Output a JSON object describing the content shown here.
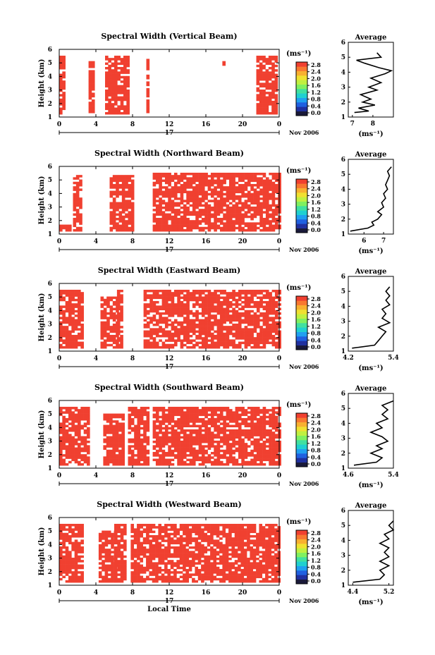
{
  "xaxis": {
    "ticks": [
      "0",
      "4",
      "8",
      "12",
      "16",
      "20",
      "0"
    ],
    "day": "17",
    "month": "Nov 2006",
    "label": "Local Time"
  },
  "height_axis": {
    "label": "Height (km)",
    "ticks": [
      "1",
      "2",
      "3",
      "4",
      "5",
      "6"
    ]
  },
  "colorbar": {
    "unit": "(ms⁻¹)",
    "ticks": [
      "0.0",
      "0.4",
      "0.8",
      "1.2",
      "1.6",
      "2.0",
      "2.4",
      "2.8"
    ],
    "colors": [
      "#1a1a3a",
      "#2030a0",
      "#2060e0",
      "#20a0f0",
      "#20d0d0",
      "#40e0a0",
      "#80f060",
      "#c0f040",
      "#f0e030",
      "#f8b030",
      "#f87830",
      "#f04030"
    ]
  },
  "average_panel": {
    "title": "Average",
    "xlabel": "(ms⁻¹)"
  },
  "chart_data": [
    {
      "type": "heatmap",
      "title": "Spectral Width (Vertical Beam)",
      "ylabel": "Height (km)",
      "xlabel": "",
      "xlim": [
        0,
        24
      ],
      "ylim": [
        1,
        6
      ],
      "avg_xticks": [
        "7",
        "8"
      ],
      "avg_xlim": [
        6.8,
        9.0
      ],
      "avg_profile": [
        [
          7.1,
          1.3
        ],
        [
          7.8,
          1.4
        ],
        [
          7.3,
          1.6
        ],
        [
          8.1,
          1.8
        ],
        [
          7.5,
          2.0
        ],
        [
          7.9,
          2.2
        ],
        [
          7.4,
          2.5
        ],
        [
          8.2,
          2.8
        ],
        [
          7.8,
          3.0
        ],
        [
          8.4,
          3.3
        ],
        [
          7.9,
          3.6
        ],
        [
          8.6,
          3.9
        ],
        [
          8.9,
          4.1
        ],
        [
          8.3,
          4.3
        ],
        [
          7.6,
          4.6
        ],
        [
          7.2,
          4.8
        ],
        [
          8.4,
          5.0
        ],
        [
          8.2,
          5.3
        ]
      ],
      "coverage": [
        [
          0,
          1.2,
          0.6,
          5.5
        ],
        [
          3.2,
          1.3,
          0.4,
          5.1
        ],
        [
          5.0,
          1.2,
          2.5,
          5.5
        ],
        [
          9.5,
          1.3,
          0.3,
          5.3
        ],
        [
          17.8,
          4.8,
          0.3,
          5.3
        ],
        [
          21.5,
          1.2,
          2.3,
          5.5
        ]
      ]
    },
    {
      "type": "heatmap",
      "title": "Spectral Width (Northward Beam)",
      "ylabel": "Height (km)",
      "xlabel": "",
      "xlim": [
        0,
        24
      ],
      "ylim": [
        1,
        6
      ],
      "avg_xticks": [
        "6",
        "7"
      ],
      "avg_xlim": [
        5.2,
        7.5
      ],
      "avg_profile": [
        [
          5.3,
          1.2
        ],
        [
          6.2,
          1.4
        ],
        [
          6.5,
          1.6
        ],
        [
          6.4,
          1.8
        ],
        [
          6.7,
          2.0
        ],
        [
          6.9,
          2.3
        ],
        [
          6.7,
          2.5
        ],
        [
          7.0,
          2.8
        ],
        [
          6.9,
          3.1
        ],
        [
          7.1,
          3.4
        ],
        [
          7.0,
          3.7
        ],
        [
          7.2,
          4.0
        ],
        [
          7.1,
          4.3
        ],
        [
          7.2,
          4.6
        ],
        [
          7.3,
          4.9
        ],
        [
          7.2,
          5.2
        ],
        [
          7.4,
          5.5
        ]
      ],
      "coverage": [
        [
          0,
          1.2,
          1.2,
          1.6
        ],
        [
          1.5,
          1.2,
          0.9,
          5.3
        ],
        [
          5.5,
          1.2,
          2.5,
          5.3
        ],
        [
          10.2,
          1.2,
          13.8,
          5.5
        ]
      ]
    },
    {
      "type": "heatmap",
      "title": "Spectral Width (Eastward Beam)",
      "ylabel": "Height (km)",
      "xlabel": "",
      "xlim": [
        0,
        24
      ],
      "ylim": [
        1,
        6
      ],
      "avg_xticks": [
        "4.2",
        "5.4"
      ],
      "avg_xlim": [
        4.2,
        5.4
      ],
      "avg_profile": [
        [
          4.3,
          1.2
        ],
        [
          4.9,
          1.4
        ],
        [
          5.0,
          1.7
        ],
        [
          5.1,
          2.0
        ],
        [
          5.2,
          2.3
        ],
        [
          5.0,
          2.6
        ],
        [
          5.3,
          2.9
        ],
        [
          5.1,
          3.2
        ],
        [
          5.2,
          3.5
        ],
        [
          5.1,
          3.8
        ],
        [
          5.3,
          4.1
        ],
        [
          5.2,
          4.4
        ],
        [
          5.3,
          4.7
        ],
        [
          5.2,
          5.0
        ],
        [
          5.3,
          5.3
        ]
      ],
      "coverage": [
        [
          0,
          1.2,
          2.5,
          5.5
        ],
        [
          4.5,
          1.2,
          1.8,
          5.0
        ],
        [
          6.3,
          1.2,
          0.5,
          5.5
        ],
        [
          9.2,
          1.2,
          14.8,
          5.5
        ]
      ]
    },
    {
      "type": "heatmap",
      "title": "Spectral Width (Southward Beam)",
      "ylabel": "Height (km)",
      "xlabel": "",
      "xlim": [
        0,
        24
      ],
      "ylim": [
        1,
        6
      ],
      "avg_xticks": [
        "4.6",
        "5.4"
      ],
      "avg_xlim": [
        4.6,
        5.4
      ],
      "avg_profile": [
        [
          4.7,
          1.2
        ],
        [
          5.1,
          1.4
        ],
        [
          5.2,
          1.7
        ],
        [
          5.0,
          2.0
        ],
        [
          5.2,
          2.3
        ],
        [
          5.1,
          2.5
        ],
        [
          5.3,
          2.8
        ],
        [
          5.2,
          3.1
        ],
        [
          5.0,
          3.4
        ],
        [
          5.2,
          3.7
        ],
        [
          5.1,
          4.0
        ],
        [
          5.3,
          4.3
        ],
        [
          5.2,
          4.6
        ],
        [
          5.3,
          4.9
        ],
        [
          5.2,
          5.2
        ],
        [
          5.4,
          5.5
        ]
      ],
      "coverage": [
        [
          0,
          1.2,
          3.2,
          5.5
        ],
        [
          4.8,
          1.2,
          2.2,
          5.0
        ],
        [
          7.5,
          1.2,
          2.3,
          5.5
        ],
        [
          10.2,
          1.2,
          13.8,
          5.5
        ]
      ]
    },
    {
      "type": "heatmap",
      "title": "Spectral Width (Westward Beam)",
      "ylabel": "Height (km)",
      "xlabel": "Local Time",
      "xlim": [
        0,
        24
      ],
      "ylim": [
        1,
        6
      ],
      "avg_xticks": [
        "4.4",
        "5.2"
      ],
      "avg_xlim": [
        4.3,
        5.3
      ],
      "avg_profile": [
        [
          4.4,
          1.2
        ],
        [
          5.0,
          1.4
        ],
        [
          5.1,
          1.7
        ],
        [
          5.0,
          2.0
        ],
        [
          5.2,
          2.3
        ],
        [
          5.0,
          2.6
        ],
        [
          5.2,
          2.9
        ],
        [
          5.1,
          3.2
        ],
        [
          5.2,
          3.5
        ],
        [
          5.0,
          3.8
        ],
        [
          5.2,
          4.1
        ],
        [
          5.1,
          4.4
        ],
        [
          5.3,
          4.7
        ],
        [
          5.2,
          5.0
        ],
        [
          5.3,
          5.3
        ]
      ],
      "coverage": [
        [
          0,
          1.2,
          2.5,
          5.5
        ],
        [
          4.3,
          1.2,
          1.7,
          5.0
        ],
        [
          6.0,
          1.2,
          1.2,
          5.5
        ],
        [
          7.8,
          1.2,
          16.2,
          5.5
        ]
      ]
    }
  ]
}
